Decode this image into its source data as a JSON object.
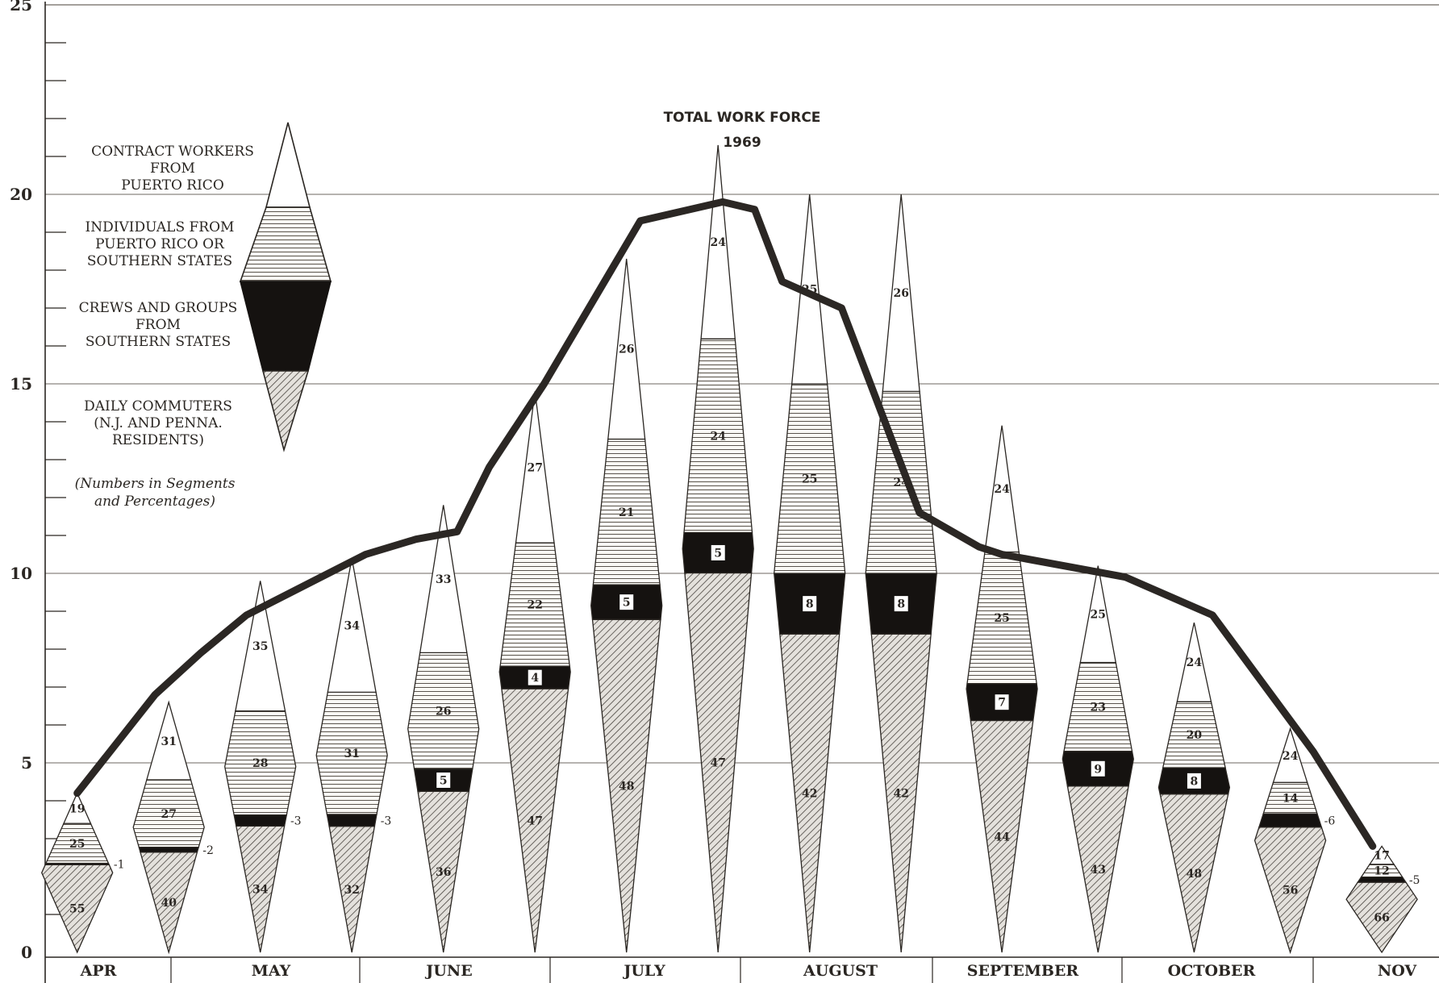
{
  "chart_data": {
    "type": "area",
    "title": "TOTAL WORK FORCE",
    "subtitle": "1969",
    "ylim": [
      0,
      25
    ],
    "yticks": [
      "0",
      "5",
      "10",
      "15",
      "20",
      "25"
    ],
    "months": [
      "APR",
      "MAY",
      "JUNE",
      "JULY",
      "AUGUST",
      "SEPTEMBER",
      "OCTOBER",
      "NOV"
    ],
    "grid": true,
    "legend_position": "top-left",
    "legend": {
      "contract": "CONTRACT WORKERS FROM PUERTO RICO",
      "contract_lines": [
        "CONTRACT WORKERS",
        "FROM",
        "PUERTO RICO"
      ],
      "individuals": "INDIVIDUALS FROM PUERTO RICO OR SOUTHERN STATES",
      "individuals_lines": [
        "INDIVIDUALS FROM",
        "PUERTO RICO OR",
        "SOUTHERN STATES"
      ],
      "crews": "CREWS AND GROUPS FROM SOUTHERN STATES",
      "crews_lines": [
        "CREWS AND GROUPS",
        "FROM",
        "SOUTHERN STATES"
      ],
      "commuters": "DAILY COMMUTERS (N.J. AND PENNA. RESIDENTS)",
      "commuters_lines": [
        "DAILY COMMUTERS",
        "(N.J. AND PENNA.",
        "RESIDENTS)"
      ],
      "note_lines": [
        "(Numbers in Segments",
        "and Percentages)"
      ]
    },
    "series_order": [
      "daily commuters",
      "crews and groups",
      "individuals",
      "contract workers"
    ],
    "total_line": {
      "x": [
        0.35,
        1.2,
        1.7,
        2.2,
        3.5,
        4.05,
        4.5,
        4.85,
        5.45,
        6.5,
        7.4,
        7.75,
        8.05,
        8.7,
        9.55,
        10.2,
        10.45,
        11.8,
        12.75,
        13.85,
        14.5
      ],
      "y": [
        4.2,
        6.8,
        7.9,
        8.9,
        10.5,
        10.9,
        11.1,
        12.8,
        15.0,
        19.3,
        19.8,
        19.6,
        17.7,
        17.0,
        11.6,
        10.7,
        10.5,
        9.9,
        8.9,
        5.3,
        2.8
      ]
    },
    "bars": [
      {
        "x": 0.35,
        "total": 4.2,
        "segments": {
          "commuters": 55,
          "crews": 1,
          "individuals": 25,
          "contract": 19
        },
        "labels": {
          "commuters": "55",
          "crews": "1",
          "individuals": "25",
          "contract": "19"
        }
      },
      {
        "x": 1.35,
        "total": 6.6,
        "segments": {
          "commuters": 40,
          "crews": 2,
          "individuals": 27,
          "contract": 31
        },
        "labels": {
          "commuters": "40",
          "crews": "2",
          "individuals": "27",
          "contract": "31"
        }
      },
      {
        "x": 2.35,
        "total": 9.8,
        "segments": {
          "commuters": 34,
          "crews": 3,
          "individuals": 28,
          "contract": 35
        },
        "labels": {
          "commuters": "34",
          "crews": "3",
          "individuals": "28",
          "contract": "35"
        }
      },
      {
        "x": 3.35,
        "total": 10.4,
        "segments": {
          "commuters": 32,
          "crews": 3,
          "individuals": 31,
          "contract": 34
        },
        "labels": {
          "commuters": "32",
          "crews": "3",
          "individuals": "31",
          "contract": "34"
        }
      },
      {
        "x": 4.35,
        "total": 11.8,
        "segments": {
          "commuters": 36,
          "crews": 5,
          "individuals": 26,
          "contract": 33
        },
        "labels": {
          "commuters": "36",
          "crews": "5",
          "individuals": "26",
          "contract": "33"
        }
      },
      {
        "x": 5.35,
        "total": 14.8,
        "segments": {
          "commuters": 47,
          "crews": 4,
          "individuals": 22,
          "contract": 27
        },
        "labels": {
          "commuters": "47",
          "crews": "4",
          "individuals": "22",
          "contract": "27"
        }
      },
      {
        "x": 6.35,
        "total": 18.3,
        "segments": {
          "commuters": 48,
          "crews": 5,
          "individuals": 21,
          "contract": 26
        },
        "labels": {
          "commuters": "48",
          "crews": "5",
          "individuals": "21",
          "contract": "26"
        }
      },
      {
        "x": 7.35,
        "total": 21.3,
        "segments": {
          "commuters": 47,
          "crews": 5,
          "individuals": 24,
          "contract": 24
        },
        "labels": {
          "commuters": "47",
          "crews": "5",
          "individuals": "24",
          "contract": "24"
        }
      },
      {
        "x": 8.35,
        "total": 20.0,
        "segments": {
          "commuters": 42,
          "crews": 8,
          "individuals": 25,
          "contract": 25
        },
        "labels": {
          "commuters": "42",
          "crews": "8",
          "individuals": "25",
          "contract": "25"
        }
      },
      {
        "x": 9.35,
        "total": 20.0,
        "segments": {
          "commuters": 42,
          "crews": 8,
          "individuals": 24,
          "contract": 26
        },
        "labels": {
          "commuters": "42",
          "crews": "8",
          "individuals": "24",
          "contract": "26"
        }
      },
      {
        "x": 10.45,
        "total": 13.9,
        "segments": {
          "commuters": 44,
          "crews": 7,
          "individuals": 25,
          "contract": 24
        },
        "labels": {
          "commuters": "44",
          "crews": "7",
          "individuals": "25",
          "contract": "24"
        }
      },
      {
        "x": 11.5,
        "total": 10.2,
        "segments": {
          "commuters": 43,
          "crews": 9,
          "individuals": 23,
          "contract": 25
        },
        "labels": {
          "commuters": "43",
          "crews": "9",
          "individuals": "23",
          "contract": "25"
        }
      },
      {
        "x": 12.55,
        "total": 8.7,
        "segments": {
          "commuters": 48,
          "crews": 8,
          "individuals": 20,
          "contract": 24
        },
        "labels": {
          "commuters": "48",
          "crews": "8",
          "individuals": "20",
          "contract": "24"
        }
      },
      {
        "x": 13.6,
        "total": 5.9,
        "segments": {
          "commuters": 56,
          "crews": 6,
          "individuals": 14,
          "contract": 24
        },
        "labels": {
          "commuters": "56",
          "crews": "6",
          "individuals": "14",
          "contract": "24"
        }
      },
      {
        "x": 14.6,
        "total": 2.8,
        "segments": {
          "commuters": 66,
          "crews": 5,
          "individuals": 12,
          "contract": 17
        },
        "labels": {
          "commuters": "66",
          "crews": "5",
          "individuals": "12",
          "contract": "17"
        }
      }
    ]
  }
}
